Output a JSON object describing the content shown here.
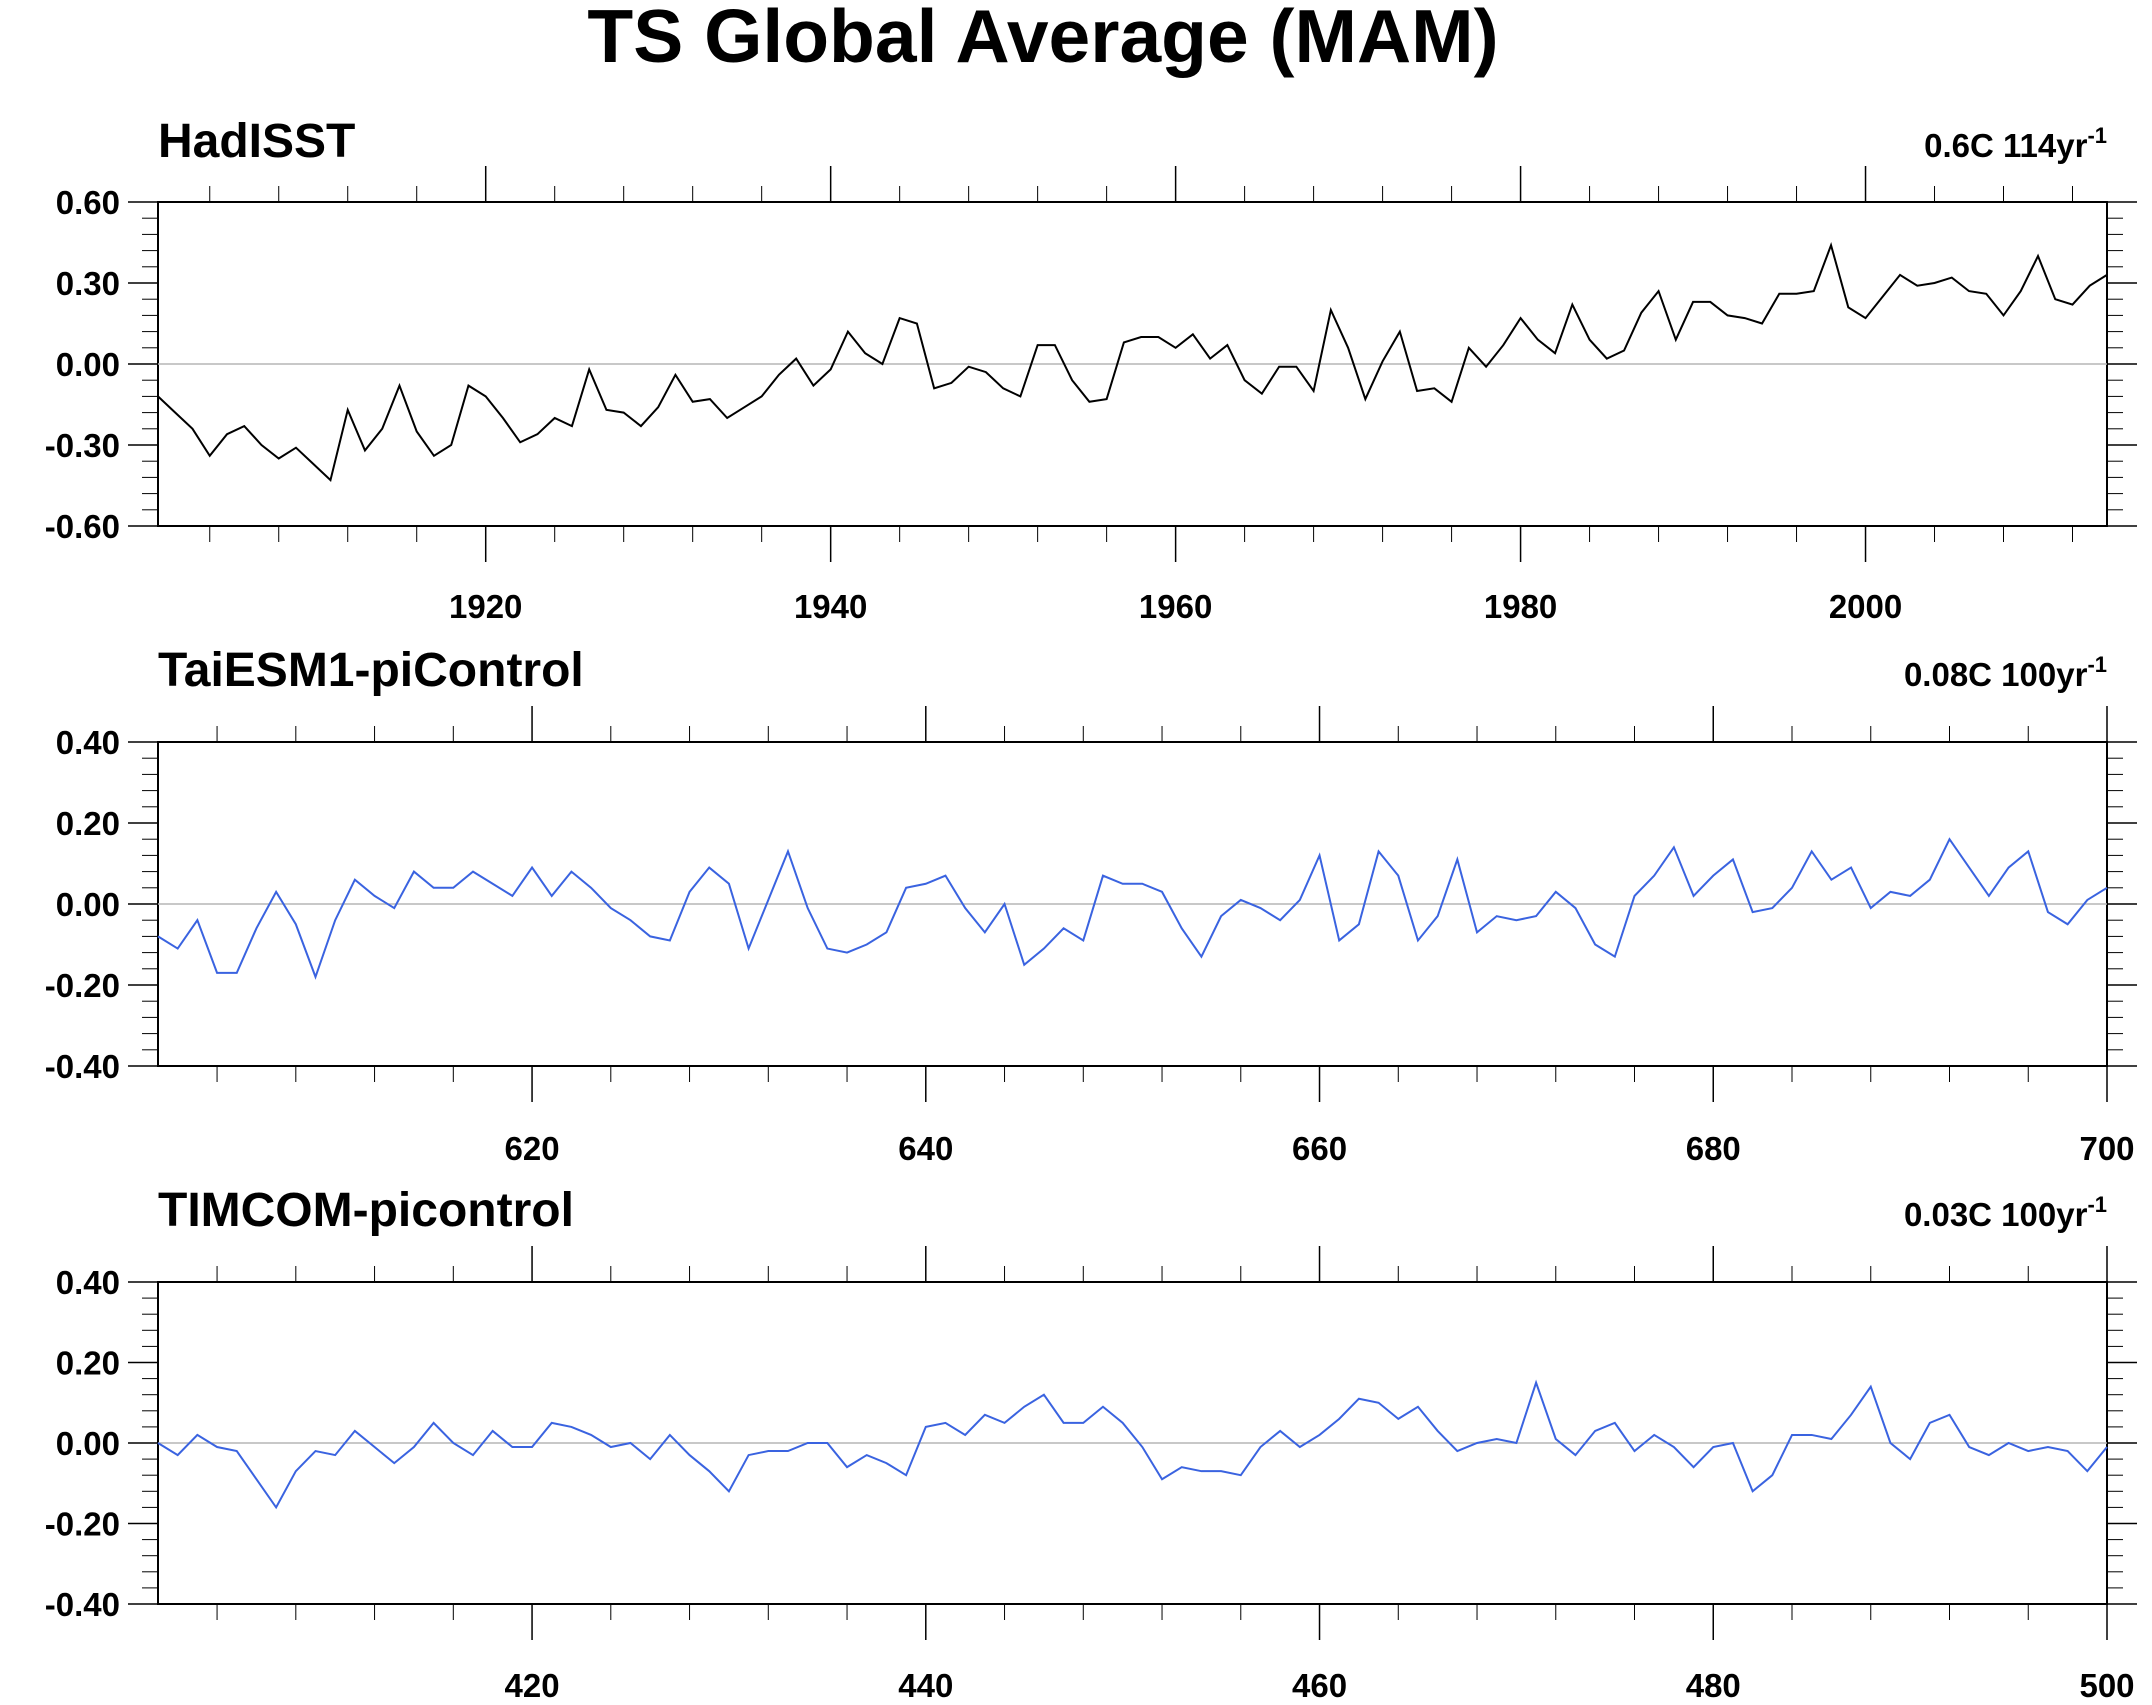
{
  "figure_title": "TS Global Average (MAM)",
  "chart_data": [
    {
      "type": "line",
      "title": "HadISST",
      "trend_label": {
        "base": "0.6C 114yr",
        "sup": "-1"
      },
      "x_start": 1901,
      "xlim": [
        1901,
        2014
      ],
      "ylim": [
        -0.6,
        0.6
      ],
      "yticks": [
        -0.6,
        -0.3,
        0.0,
        0.3,
        0.6
      ],
      "ytick_labels": [
        "-0.60",
        "-0.30",
        "0.00",
        "0.30",
        "0.60"
      ],
      "xticks": [
        1920,
        1940,
        1960,
        1980,
        2000
      ],
      "xtick_labels": [
        "1920",
        "1940",
        "1960",
        "1980",
        "2000"
      ],
      "minor_y_step": 0.06,
      "minor_x_step": 4,
      "zero_line": true,
      "series": [
        {
          "color": "#000000",
          "values": [
            -0.12,
            -0.18,
            -0.24,
            -0.34,
            -0.26,
            -0.23,
            -0.3,
            -0.35,
            -0.31,
            -0.37,
            -0.43,
            -0.17,
            -0.32,
            -0.24,
            -0.08,
            -0.25,
            -0.34,
            -0.3,
            -0.08,
            -0.12,
            -0.2,
            -0.29,
            -0.26,
            -0.2,
            -0.23,
            -0.02,
            -0.17,
            -0.18,
            -0.23,
            -0.16,
            -0.04,
            -0.14,
            -0.13,
            -0.2,
            -0.16,
            -0.12,
            -0.04,
            0.02,
            -0.08,
            -0.02,
            0.12,
            0.04,
            0.0,
            0.17,
            0.15,
            -0.09,
            -0.07,
            -0.01,
            -0.03,
            -0.09,
            -0.12,
            0.07,
            0.07,
            -0.06,
            -0.14,
            -0.13,
            0.08,
            0.1,
            0.1,
            0.06,
            0.11,
            0.02,
            0.07,
            -0.06,
            -0.11,
            -0.01,
            -0.01,
            -0.1,
            0.2,
            0.06,
            -0.13,
            0.01,
            0.12,
            -0.1,
            -0.09,
            -0.14,
            0.06,
            -0.01,
            0.07,
            0.17,
            0.09,
            0.04,
            0.22,
            0.09,
            0.02,
            0.05,
            0.19,
            0.27,
            0.09,
            0.23,
            0.23,
            0.18,
            0.17,
            0.15,
            0.26,
            0.26,
            0.27,
            0.44,
            0.21,
            0.17,
            0.25,
            0.33,
            0.29,
            0.3,
            0.32,
            0.27,
            0.26,
            0.18,
            0.27,
            0.4,
            0.24,
            0.22,
            0.29,
            0.33
          ]
        }
      ]
    },
    {
      "type": "line",
      "title": "TaiESM1-piControl",
      "trend_label": {
        "base": "0.08C 100yr",
        "sup": "-1"
      },
      "x_start": 601,
      "xlim": [
        601,
        700
      ],
      "ylim": [
        -0.4,
        0.4
      ],
      "yticks": [
        -0.4,
        -0.2,
        0.0,
        0.2,
        0.4
      ],
      "ytick_labels": [
        "-0.40",
        "-0.20",
        "0.00",
        "0.20",
        "0.40"
      ],
      "xticks": [
        620,
        640,
        660,
        680,
        700
      ],
      "xtick_labels": [
        "620",
        "640",
        "660",
        "680",
        "700"
      ],
      "minor_y_step": 0.04,
      "minor_x_step": 4,
      "zero_line": true,
      "series": [
        {
          "color": "#3a63e0",
          "values": [
            -0.08,
            -0.11,
            -0.04,
            -0.17,
            -0.17,
            -0.06,
            0.03,
            -0.05,
            -0.18,
            -0.04,
            0.06,
            0.02,
            -0.01,
            0.08,
            0.04,
            0.04,
            0.08,
            0.05,
            0.02,
            0.09,
            0.02,
            0.08,
            0.04,
            -0.01,
            -0.04,
            -0.08,
            -0.09,
            0.03,
            0.09,
            0.05,
            -0.11,
            0.01,
            0.13,
            -0.01,
            -0.11,
            -0.12,
            -0.1,
            -0.07,
            0.04,
            0.05,
            0.07,
            -0.01,
            -0.07,
            0.0,
            -0.15,
            -0.11,
            -0.06,
            -0.09,
            0.07,
            0.05,
            0.05,
            0.03,
            -0.06,
            -0.13,
            -0.03,
            0.01,
            -0.01,
            -0.04,
            0.01,
            0.12,
            -0.09,
            -0.05,
            0.13,
            0.07,
            -0.09,
            -0.03,
            0.11,
            -0.07,
            -0.03,
            -0.04,
            -0.03,
            0.03,
            -0.01,
            -0.1,
            -0.13,
            0.02,
            0.07,
            0.14,
            0.02,
            0.07,
            0.11,
            -0.02,
            -0.01,
            0.04,
            0.13,
            0.06,
            0.09,
            -0.01,
            0.03,
            0.02,
            0.06,
            0.16,
            0.09,
            0.02,
            0.09,
            0.13,
            -0.02,
            -0.05,
            0.01,
            0.04
          ]
        }
      ]
    },
    {
      "type": "line",
      "title": "TIMCOM-picontrol",
      "trend_label": {
        "base": "0.03C 100yr",
        "sup": "-1"
      },
      "x_start": 401,
      "xlim": [
        401,
        500
      ],
      "ylim": [
        -0.4,
        0.4
      ],
      "yticks": [
        -0.4,
        -0.2,
        0.0,
        0.2,
        0.4
      ],
      "ytick_labels": [
        "-0.40",
        "-0.20",
        "0.00",
        "0.20",
        "0.40"
      ],
      "xticks": [
        420,
        440,
        460,
        480,
        500
      ],
      "xtick_labels": [
        "420",
        "440",
        "460",
        "480",
        "500"
      ],
      "minor_y_step": 0.04,
      "minor_x_step": 4,
      "zero_line": true,
      "series": [
        {
          "color": "#3a63e0",
          "values": [
            0.0,
            -0.03,
            0.02,
            -0.01,
            -0.02,
            -0.09,
            -0.16,
            -0.07,
            -0.02,
            -0.03,
            0.03,
            -0.01,
            -0.05,
            -0.01,
            0.05,
            0.0,
            -0.03,
            0.03,
            -0.01,
            -0.01,
            0.05,
            0.04,
            0.02,
            -0.01,
            0.0,
            -0.04,
            0.02,
            -0.03,
            -0.07,
            -0.12,
            -0.03,
            -0.02,
            -0.02,
            0.0,
            0.0,
            -0.06,
            -0.03,
            -0.05,
            -0.08,
            0.04,
            0.05,
            0.02,
            0.07,
            0.05,
            0.09,
            0.12,
            0.05,
            0.05,
            0.09,
            0.05,
            -0.01,
            -0.09,
            -0.06,
            -0.07,
            -0.07,
            -0.08,
            -0.01,
            0.03,
            -0.01,
            0.02,
            0.06,
            0.11,
            0.1,
            0.06,
            0.09,
            0.03,
            -0.02,
            0.0,
            0.01,
            0.0,
            0.15,
            0.01,
            -0.03,
            0.03,
            0.05,
            -0.02,
            0.02,
            -0.01,
            -0.06,
            -0.01,
            0.0,
            -0.12,
            -0.08,
            0.02,
            0.02,
            0.01,
            0.07,
            0.14,
            0.0,
            -0.04,
            0.05,
            0.07,
            -0.01,
            -0.03,
            0.0,
            -0.02,
            -0.01,
            -0.02,
            -0.07,
            -0.01
          ]
        }
      ]
    }
  ]
}
